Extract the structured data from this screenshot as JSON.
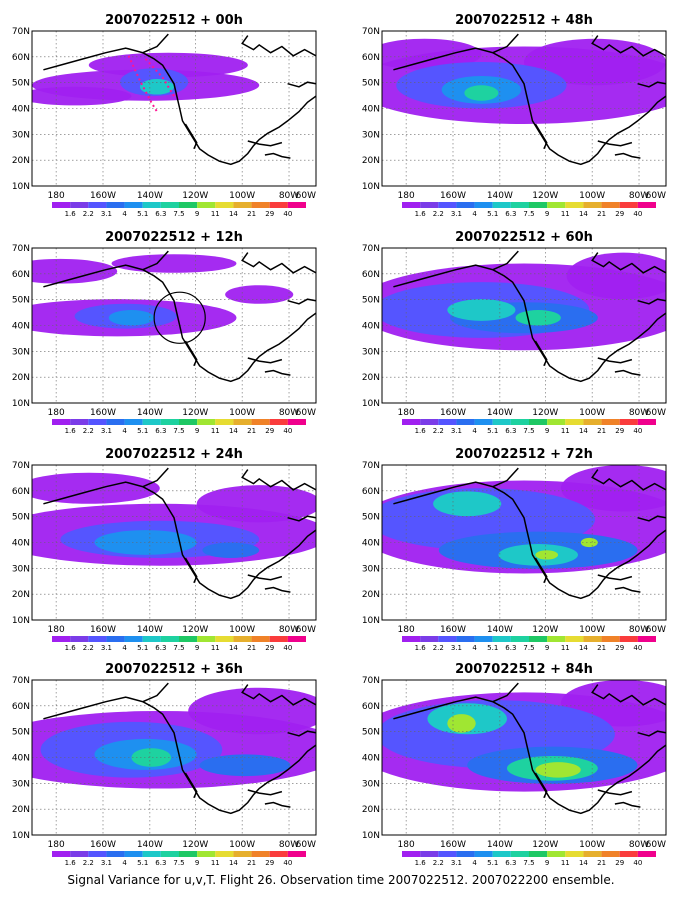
{
  "panels": [
    {
      "title": "2007022512 + 00h",
      "lead": "00h"
    },
    {
      "title": "2007022512 + 12h",
      "lead": "12h"
    },
    {
      "title": "2007022512 + 24h",
      "lead": "24h"
    },
    {
      "title": "2007022512 + 36h",
      "lead": "36h"
    },
    {
      "title": "2007022512 + 48h",
      "lead": "48h"
    },
    {
      "title": "2007022512 + 60h",
      "lead": "60h"
    },
    {
      "title": "2007022512 + 72h",
      "lead": "72h"
    },
    {
      "title": "2007022512 + 84h",
      "lead": "84h"
    }
  ],
  "lat_labels": [
    "70N",
    "60N",
    "50N",
    "40N",
    "30N",
    "20N",
    "10N"
  ],
  "lon_labels": [
    "180",
    "160W",
    "140W",
    "120W",
    "100W",
    "80W",
    "60W"
  ],
  "colorbar": {
    "labels": [
      "1.6",
      "2.2",
      "3.1",
      "4",
      "5.1",
      "6.3",
      "7.5",
      "9",
      "11",
      "14",
      "21",
      "29",
      "40"
    ],
    "colors": [
      "#a020f0",
      "#7b3ce8",
      "#5555ff",
      "#2a6ef0",
      "#1e90f0",
      "#1ec8c8",
      "#1ed2a0",
      "#1ec864",
      "#a0e632",
      "#e6dc32",
      "#e6af2d",
      "#f08228",
      "#fa3c3c",
      "#f0008c"
    ]
  },
  "caption": "Signal Variance for u,v,T. Flight 26. Observation time 2007022512. 2007022200 ensemble."
}
